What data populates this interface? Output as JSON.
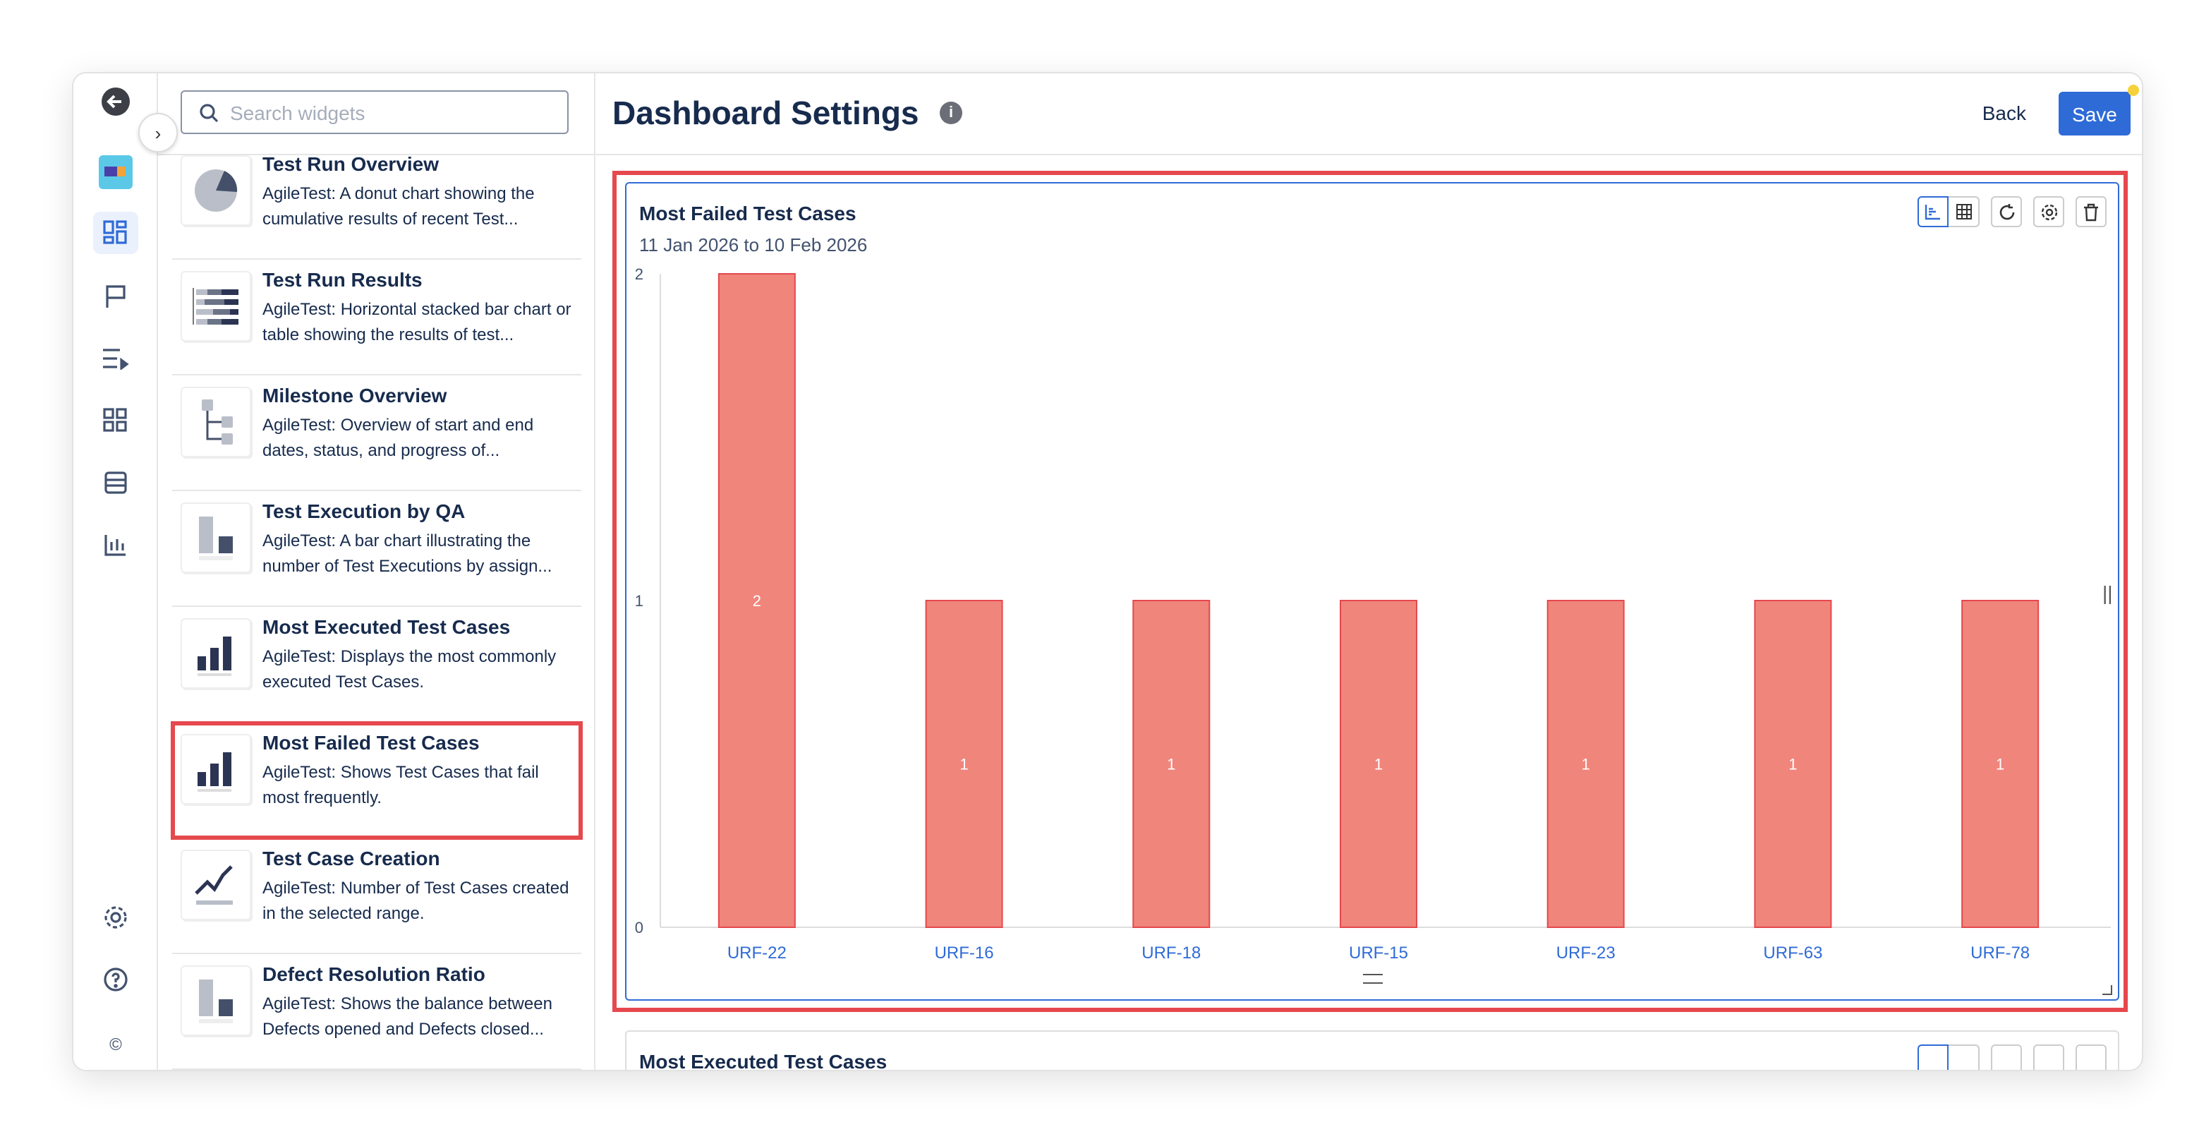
{
  "header": {
    "title": "Dashboard Settings",
    "info_icon": "info-icon",
    "back_label": "Back",
    "save_label": "Save"
  },
  "search": {
    "placeholder": "Search widgets"
  },
  "rail": {
    "icons": [
      "back-arrow-icon",
      "app-logo-icon",
      "dashboard-icon",
      "flag-icon",
      "test-run-icon",
      "grid-icon",
      "table-icon",
      "chart-icon",
      "gear-icon",
      "help-icon",
      "copyright-icon"
    ]
  },
  "widgets": [
    {
      "title": "Test Run Overview",
      "desc": "AgileTest: A donut chart showing the cumulative results of recent Test..."
    },
    {
      "title": "Test Run Results",
      "desc": "AgileTest: Horizontal stacked bar chart or table showing the results of test..."
    },
    {
      "title": "Milestone Overview",
      "desc": "AgileTest: Overview of start and end dates, status, and progress of..."
    },
    {
      "title": "Test Execution by QA",
      "desc": "AgileTest: A bar chart illustrating the number of Test Executions by assign..."
    },
    {
      "title": "Most Executed Test Cases",
      "desc": "AgileTest: Displays the most commonly executed Test Cases."
    },
    {
      "title": "Most Failed Test Cases",
      "desc": "AgileTest: Shows Test Cases that fail most frequently."
    },
    {
      "title": "Test Case Creation",
      "desc": "AgileTest: Number of Test Cases created in the selected range."
    },
    {
      "title": "Defect Resolution Ratio",
      "desc": "AgileTest: Shows the balance between Defects opened and Defects closed..."
    }
  ],
  "cards": [
    {
      "title": "Most Failed Test Cases",
      "subtitle": "11 Jan 2026 to 10 Feb 2026"
    },
    {
      "title": "Most Executed Test Cases"
    }
  ],
  "colors": {
    "accent": "#2f6bd7",
    "bar": "#f0857c",
    "bar_border": "#e5484d",
    "highlight": "#e5484d",
    "axis_label": "#2f6bd7"
  },
  "chart_data": {
    "type": "bar",
    "categories": [
      "URF-22",
      "URF-16",
      "URF-18",
      "URF-15",
      "URF-23",
      "URF-63",
      "URF-78"
    ],
    "values": [
      2,
      1,
      1,
      1,
      1,
      1,
      1
    ],
    "yticks": [
      0,
      1,
      2
    ],
    "ylim": [
      0,
      2
    ],
    "data_labels": true,
    "grid": false
  }
}
